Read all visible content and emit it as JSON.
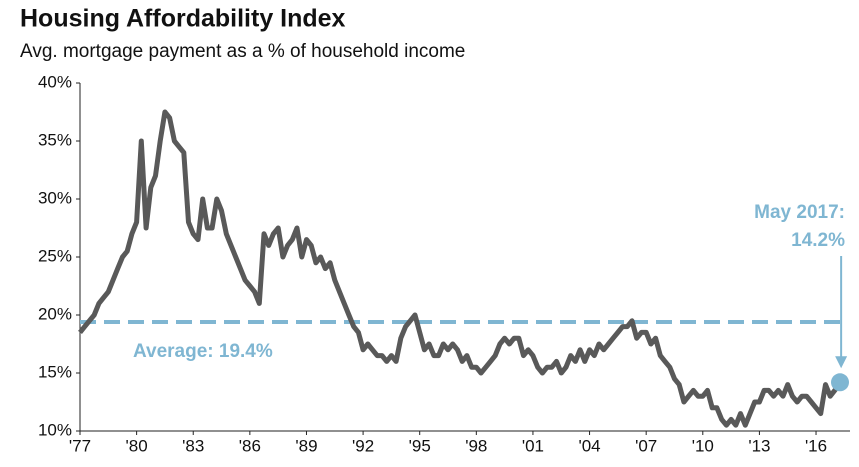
{
  "chart_data": {
    "type": "line",
    "title": "Housing Affordability Index",
    "subtitle": "Avg. mortgage payment as a % of household income",
    "color": "#595959",
    "x": [
      1977,
      1977.25,
      1977.5,
      1977.75,
      1978,
      1978.25,
      1978.5,
      1978.75,
      1979,
      1979.25,
      1979.5,
      1979.75,
      1980,
      1980.25,
      1980.5,
      1980.75,
      1981,
      1981.25,
      1981.5,
      1981.75,
      1982,
      1982.25,
      1982.5,
      1982.75,
      1983,
      1983.25,
      1983.5,
      1983.75,
      1984,
      1984.25,
      1984.5,
      1984.75,
      1985,
      1985.25,
      1985.5,
      1985.75,
      1986,
      1986.25,
      1986.5,
      1986.75,
      1987,
      1987.25,
      1987.5,
      1987.75,
      1988,
      1988.25,
      1988.5,
      1988.75,
      1989,
      1989.25,
      1989.5,
      1989.75,
      1990,
      1990.25,
      1990.5,
      1990.75,
      1991,
      1991.25,
      1991.5,
      1991.75,
      1992,
      1992.25,
      1992.5,
      1992.75,
      1993,
      1993.25,
      1993.5,
      1993.75,
      1994,
      1994.25,
      1994.5,
      1994.75,
      1995,
      1995.25,
      1995.5,
      1995.75,
      1996,
      1996.25,
      1996.5,
      1996.75,
      1997,
      1997.25,
      1997.5,
      1997.75,
      1998,
      1998.25,
      1998.5,
      1998.75,
      1999,
      1999.25,
      1999.5,
      1999.75,
      2000,
      2000.25,
      2000.5,
      2000.75,
      2001,
      2001.25,
      2001.5,
      2001.75,
      2002,
      2002.25,
      2002.5,
      2002.75,
      2003,
      2003.25,
      2003.5,
      2003.75,
      2004,
      2004.25,
      2004.5,
      2004.75,
      2005,
      2005.25,
      2005.5,
      2005.75,
      2006,
      2006.25,
      2006.5,
      2006.75,
      2007,
      2007.25,
      2007.5,
      2007.75,
      2008,
      2008.25,
      2008.5,
      2008.75,
      2009,
      2009.25,
      2009.5,
      2009.75,
      2010,
      2010.25,
      2010.5,
      2010.75,
      2011,
      2011.25,
      2011.5,
      2011.75,
      2012,
      2012.25,
      2012.5,
      2012.75,
      2013,
      2013.25,
      2013.5,
      2013.75,
      2014,
      2014.25,
      2014.5,
      2014.75,
      2015,
      2015.25,
      2015.5,
      2015.75,
      2016,
      2016.25,
      2016.5,
      2016.75,
      2017.33
    ],
    "values": [
      18.5,
      19,
      19.5,
      20,
      21,
      21.5,
      22,
      23,
      24,
      25,
      25.5,
      27,
      28,
      35,
      27.5,
      31,
      32,
      35,
      37.5,
      37,
      35,
      34.5,
      34,
      28,
      27,
      26.5,
      30,
      27.5,
      27.5,
      30,
      29,
      27,
      26,
      25,
      24,
      23,
      22.5,
      22,
      21,
      27,
      26,
      27,
      27.5,
      25,
      26,
      26.5,
      27.5,
      25,
      26.5,
      26,
      24.5,
      25,
      24,
      24.5,
      23,
      22,
      21,
      20,
      19,
      18.5,
      17,
      17.5,
      17,
      16.5,
      16.5,
      16,
      16.5,
      16,
      18,
      19,
      19.5,
      20,
      18.5,
      17,
      17.5,
      16.5,
      16.5,
      17.5,
      17,
      17.5,
      17,
      16,
      16.5,
      15.5,
      15.5,
      15,
      15.5,
      16,
      16.5,
      17.5,
      18,
      17.5,
      18,
      18,
      16.5,
      17,
      16.5,
      15.5,
      15,
      15.5,
      15.5,
      16,
      15,
      15.5,
      16.5,
      16,
      17,
      16,
      17,
      16.5,
      17.5,
      17,
      17.5,
      18,
      18.5,
      19,
      19,
      19.5,
      18,
      18.5,
      18.5,
      17.5,
      18,
      16.5,
      16,
      15.5,
      14.5,
      14,
      12.5,
      13,
      13.5,
      13,
      13,
      13.5,
      12,
      12,
      11,
      10.5,
      11,
      10.5,
      11.5,
      10.5,
      11.5,
      12.5,
      12.5,
      13.5,
      13.5,
      13,
      13.5,
      13,
      14,
      13,
      12.5,
      13,
      13,
      12.5,
      12,
      11.5,
      14,
      13,
      14.2
    ],
    "xlim": [
      1977,
      2017.8
    ],
    "xticks": [
      {
        "value": 1977,
        "label": "'77"
      },
      {
        "value": 1980,
        "label": "'80"
      },
      {
        "value": 1983,
        "label": "'83"
      },
      {
        "value": 1986,
        "label": "'86"
      },
      {
        "value": 1989,
        "label": "'89"
      },
      {
        "value": 1992,
        "label": "'92"
      },
      {
        "value": 1995,
        "label": "'95"
      },
      {
        "value": 1998,
        "label": "'98"
      },
      {
        "value": 2001,
        "label": "'01"
      },
      {
        "value": 2004,
        "label": "'04"
      },
      {
        "value": 2007,
        "label": "'07"
      },
      {
        "value": 2010,
        "label": "'10"
      },
      {
        "value": 2013,
        "label": "'13"
      },
      {
        "value": 2016,
        "label": "'16"
      }
    ],
    "ylim": [
      10,
      40
    ],
    "yticks": [
      {
        "value": 10,
        "label": "10%"
      },
      {
        "value": 15,
        "label": "15%"
      },
      {
        "value": 20,
        "label": "20%"
      },
      {
        "value": 25,
        "label": "25%"
      },
      {
        "value": 30,
        "label": "30%"
      },
      {
        "value": 35,
        "label": "35%"
      },
      {
        "value": 40,
        "label": "40%"
      }
    ],
    "average": {
      "value": 19.4,
      "label": "Average: 19.4%",
      "color": "#7fb6d2"
    },
    "highlight": {
      "x": 2017.33,
      "value": 14.2,
      "label": "May 2017:",
      "value_label": "14.2%",
      "color": "#7fb6d2"
    }
  }
}
